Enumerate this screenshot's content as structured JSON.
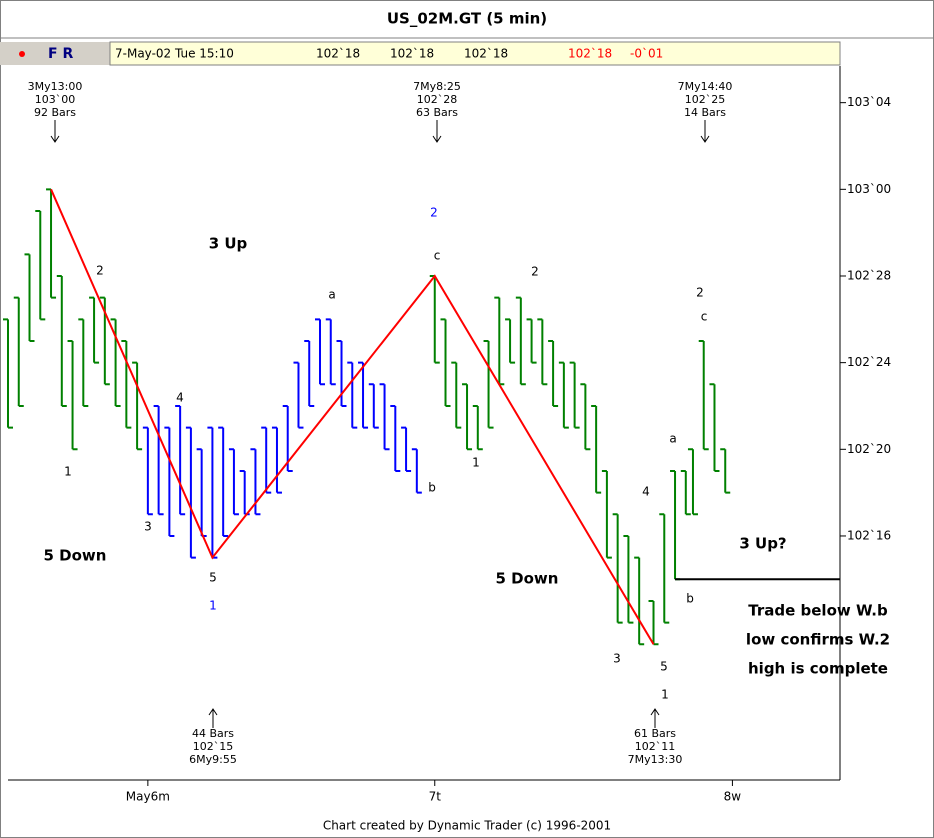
{
  "chart_data": {
    "type": "ohlc",
    "title": "US_02M.GT (5 min)",
    "info": {
      "flags": "F R",
      "date": "7-May-02 Tue 15:10",
      "prices": [
        "102`18",
        "102`18",
        "102`18"
      ],
      "last": "102`18",
      "change": "-0`01"
    },
    "footer": "Chart created by Dynamic Trader (c) 1996-2001",
    "xlim": [
      0,
      232
    ],
    "xticks": [
      {
        "value": 39,
        "label": "May6m"
      },
      {
        "value": 119,
        "label": "7t"
      },
      {
        "value": 202,
        "label": "8w"
      }
    ],
    "ylim": [
      102.148,
      103.175
    ],
    "yticks": [
      {
        "value": 102.5,
        "label": "102`16"
      },
      {
        "value": 102.625,
        "label": "102`20"
      },
      {
        "value": 102.75,
        "label": "102`24"
      },
      {
        "value": 102.875,
        "label": "102`28"
      },
      {
        "value": 103,
        "label": "103`00"
      },
      {
        "value": 103.125,
        "label": "103`04"
      }
    ],
    "series": [
      {
        "color": "#008000",
        "x": [
          0,
          3,
          6,
          9,
          12,
          15,
          18,
          21,
          24,
          27,
          30,
          33,
          36
        ],
        "high": [
          102.8125,
          102.84375,
          102.90625,
          102.96875,
          103,
          102.875,
          102.78125,
          102.8125,
          102.84375,
          102.84375,
          102.8125,
          102.78125,
          102.75
        ],
        "low": [
          102.65625,
          102.6875,
          102.78125,
          102.8125,
          102.84375,
          102.6875,
          102.625,
          102.6875,
          102.75,
          102.71875,
          102.6875,
          102.65625,
          102.625
        ]
      },
      {
        "color": "#0000ff",
        "x": [
          39,
          42,
          45,
          48,
          51,
          54,
          57,
          60,
          63,
          66,
          69,
          72,
          75,
          78,
          81,
          84,
          87,
          90,
          93,
          96,
          99,
          102,
          105,
          108,
          111,
          114
        ],
        "high": [
          102.65625,
          102.6875,
          102.65625,
          102.6875,
          102.65625,
          102.625,
          102.65625,
          102.65625,
          102.625,
          102.59375,
          102.625,
          102.65625,
          102.65625,
          102.6875,
          102.75,
          102.78125,
          102.8125,
          102.8125,
          102.78125,
          102.75,
          102.75,
          102.71875,
          102.71875,
          102.6875,
          102.65625,
          102.625
        ],
        "low": [
          102.53125,
          102.53125,
          102.5,
          102.53125,
          102.46875,
          102.5,
          102.46875,
          102.5,
          102.53125,
          102.53125,
          102.53125,
          102.5625,
          102.5625,
          102.59375,
          102.65625,
          102.6875,
          102.71875,
          102.71875,
          102.6875,
          102.65625,
          102.65625,
          102.65625,
          102.625,
          102.59375,
          102.59375,
          102.5625
        ]
      },
      {
        "color": "#008000",
        "x": [
          119,
          122,
          125,
          128,
          131,
          134,
          137,
          140,
          143,
          146,
          149,
          152,
          155,
          158,
          161,
          164,
          167,
          170,
          173,
          176,
          180,
          183,
          186,
          189,
          191,
          194,
          197,
          200
        ],
        "high": [
          102.875,
          102.8125,
          102.75,
          102.71875,
          102.6875,
          102.78125,
          102.84375,
          102.8125,
          102.84375,
          102.8125,
          102.8125,
          102.78125,
          102.75,
          102.75,
          102.71875,
          102.6875,
          102.59375,
          102.53125,
          102.5,
          102.46875,
          102.40625,
          102.53125,
          102.59375,
          102.59375,
          102.625,
          102.78125,
          102.71875,
          102.625
        ],
        "low": [
          102.75,
          102.6875,
          102.65625,
          102.625,
          102.625,
          102.65625,
          102.71875,
          102.75,
          102.71875,
          102.75,
          102.71875,
          102.6875,
          102.65625,
          102.65625,
          102.625,
          102.5625,
          102.46875,
          102.375,
          102.375,
          102.34375,
          102.34375,
          102.375,
          102.4375,
          102.53125,
          102.53125,
          102.625,
          102.59375,
          102.5625
        ]
      }
    ],
    "zigzag": {
      "color": "#ff0000",
      "x": [
        12,
        57,
        119,
        180
      ],
      "values": [
        103,
        102.46875,
        102.875,
        102.34375
      ]
    },
    "level": {
      "x": 186,
      "value": 102.4375
    },
    "pivot_notes": [
      [
        "3My13:00",
        "103`00",
        "92 Bars"
      ],
      [
        "7My8:25",
        "102`28",
        "63 Bars"
      ],
      [
        "7My14:40",
        "102`25",
        "14 Bars"
      ],
      [
        "44 Bars",
        "102`15",
        "6My9:55"
      ],
      [
        "61 Bars",
        "102`11",
        "7My13:30"
      ]
    ],
    "wave_labels": [
      "2",
      "1",
      "4",
      "3",
      "5",
      "1",
      "a",
      "c",
      "2",
      "b",
      "1",
      "2",
      "4",
      "3",
      "5",
      "1",
      "a",
      "2",
      "c",
      "b"
    ],
    "wave_colors": [
      "#000",
      "#000",
      "#000",
      "#000",
      "#000",
      "#0000ff",
      "#000",
      "#000",
      "#0000ff",
      "#000",
      "#000",
      "#000",
      "#000",
      "#000",
      "#000",
      "#000",
      "#000",
      "#000",
      "#000",
      "#000"
    ],
    "captions": [
      "3 Up",
      "5 Down",
      "5 Down",
      "3 Up?"
    ],
    "comment": [
      "Trade below W.b",
      "low confirms W.2",
      "high is complete"
    ]
  }
}
